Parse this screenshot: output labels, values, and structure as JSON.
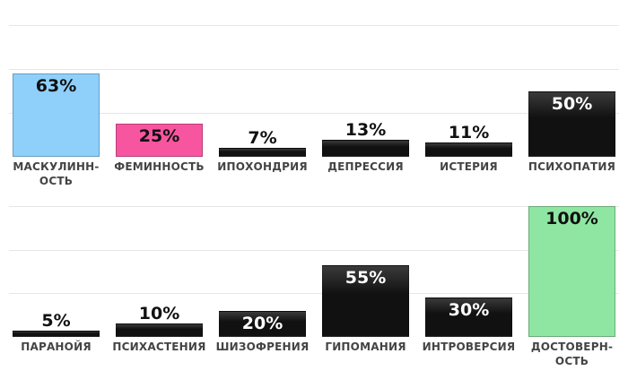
{
  "chart_data": [
    {
      "type": "bar",
      "categories": [
        "МАСКУЛИНН-\nОСТЬ",
        "ФЕМИННОСТЬ",
        "ИПОХОНДРИЯ",
        "ДЕПРЕССИЯ",
        "ИСТЕРИЯ",
        "ПСИХОПАТИЯ"
      ],
      "values": [
        63,
        25,
        7,
        13,
        11,
        50
      ],
      "value_labels": [
        "63%",
        "25%",
        "7%",
        "13%",
        "11%",
        "50%"
      ],
      "colors": [
        "#8fd0fb",
        "#f7559f",
        "#111111",
        "#111111",
        "#111111",
        "#111111"
      ],
      "ylim": [
        0,
        100
      ],
      "grid": true
    },
    {
      "type": "bar",
      "categories": [
        "ПАРАНОЙЯ",
        "ПСИХАСТЕНИЯ",
        "ШИЗОФРЕНИЯ",
        "ГИПОМАНИЯ",
        "ИНТРОВЕРСИЯ",
        "ДОСТОВЕРН-\nОСТЬ"
      ],
      "values": [
        5,
        10,
        20,
        55,
        30,
        100
      ],
      "value_labels": [
        "5%",
        "10%",
        "20%",
        "55%",
        "30%",
        "100%"
      ],
      "colors": [
        "#111111",
        "#111111",
        "#111111",
        "#111111",
        "#111111",
        "#8ee6a2"
      ],
      "ylim": [
        0,
        100
      ],
      "grid": true
    }
  ]
}
